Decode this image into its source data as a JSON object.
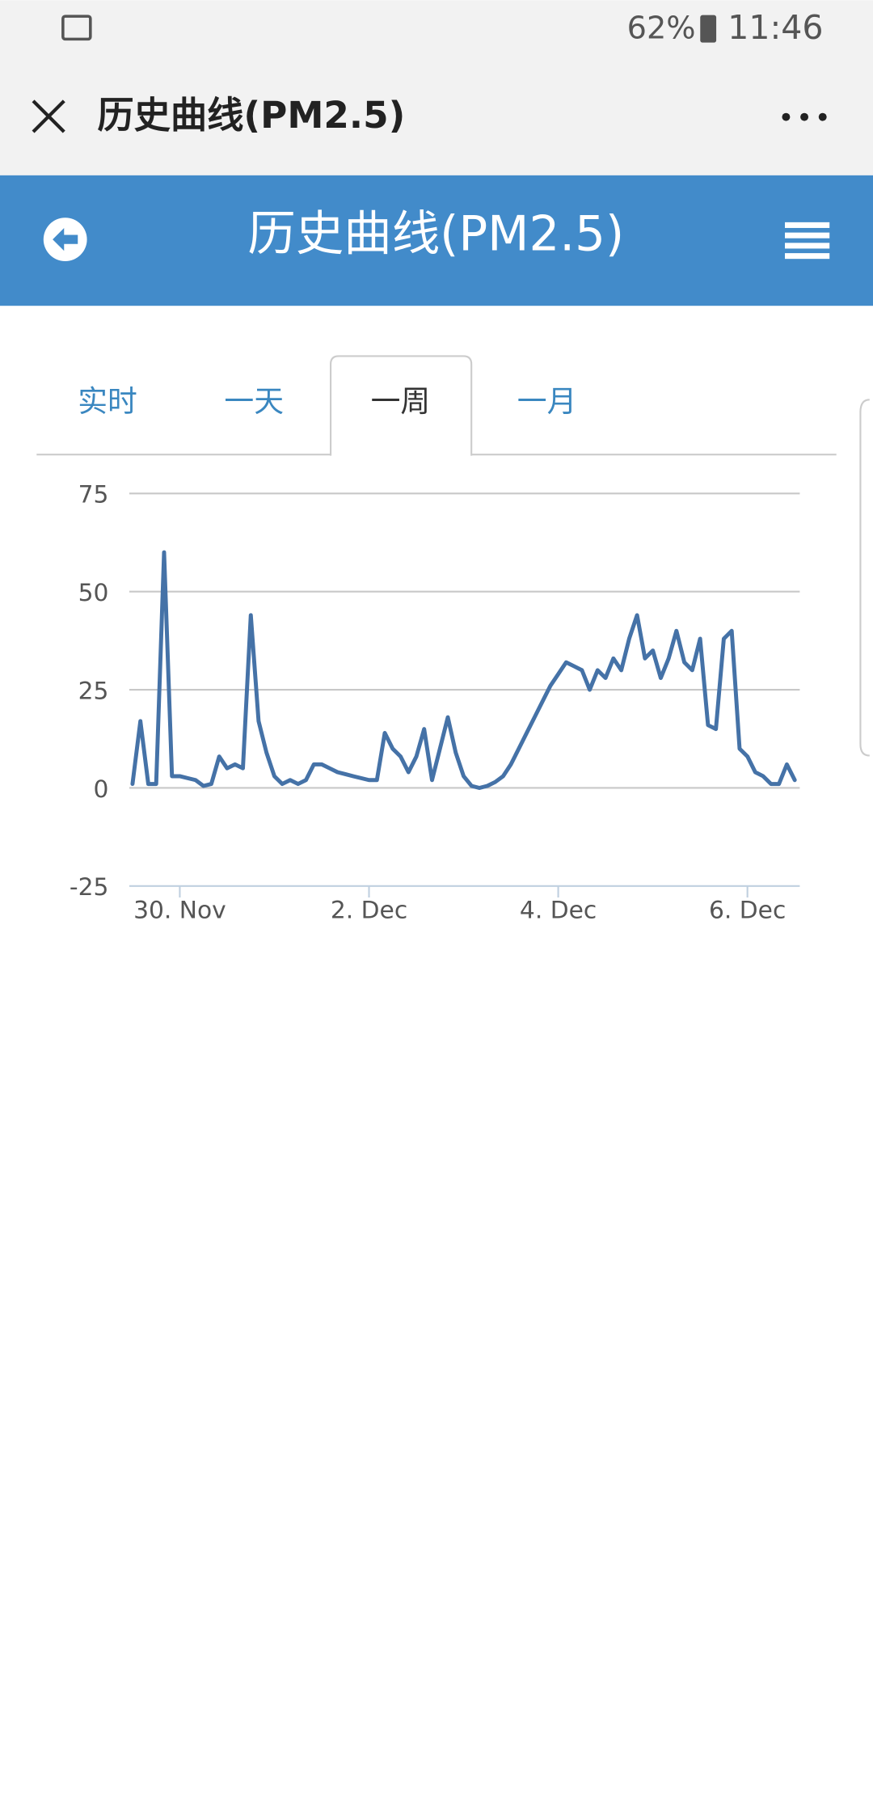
{
  "status_bar": {
    "battery": "62%",
    "time": "11:46"
  },
  "app_bar": {
    "title": "历史曲线(PM2.5)"
  },
  "header": {
    "title": "历史曲线(PM2.5)"
  },
  "tabs": [
    "实时",
    "一天",
    "一周",
    "一月"
  ],
  "active_tab": 2,
  "chart_data": {
    "type": "line",
    "color": "#4572a7",
    "grid": true,
    "categories": [
      null,
      null,
      null,
      null,
      null,
      null,
      "30. Nov",
      null,
      null,
      null,
      null,
      null,
      null,
      null,
      null,
      null,
      null,
      null,
      null,
      null,
      null,
      null,
      null,
      null,
      null,
      null,
      null,
      null,
      null,
      null,
      "2. Dec",
      null,
      null,
      null,
      null,
      null,
      null,
      null,
      null,
      null,
      null,
      null,
      null,
      null,
      null,
      null,
      null,
      null,
      null,
      null,
      null,
      null,
      null,
      null,
      "4. Dec",
      null,
      null,
      null,
      null,
      null,
      null,
      null,
      null,
      null,
      null,
      null,
      null,
      null,
      null,
      null,
      null,
      null,
      null,
      null,
      null,
      null,
      null,
      null,
      "6. Dec",
      null,
      null,
      null,
      null,
      null,
      null
    ],
    "values": [
      1,
      17,
      1,
      1,
      60,
      3,
      3,
      2.5,
      2,
      0.5,
      1,
      8,
      5,
      6,
      5,
      44,
      17,
      9,
      3,
      1,
      2,
      1,
      2,
      6,
      6,
      5,
      4,
      3.5,
      3,
      2.5,
      2,
      2,
      14,
      10,
      8,
      4,
      8,
      15,
      2,
      10,
      18,
      9,
      3,
      0.5,
      0,
      0.5,
      1.5,
      3,
      6,
      10,
      14,
      18,
      22,
      26,
      29,
      32,
      31,
      30,
      25,
      30,
      28,
      33,
      30,
      38,
      44,
      33,
      35,
      28,
      33,
      40,
      32,
      30,
      38,
      16,
      15,
      38,
      40,
      10,
      8,
      4,
      3,
      1,
      1,
      6,
      2
    ],
    "ylim": [
      -25,
      75
    ],
    "yticks": [
      -25,
      0,
      25,
      50,
      75
    ]
  }
}
